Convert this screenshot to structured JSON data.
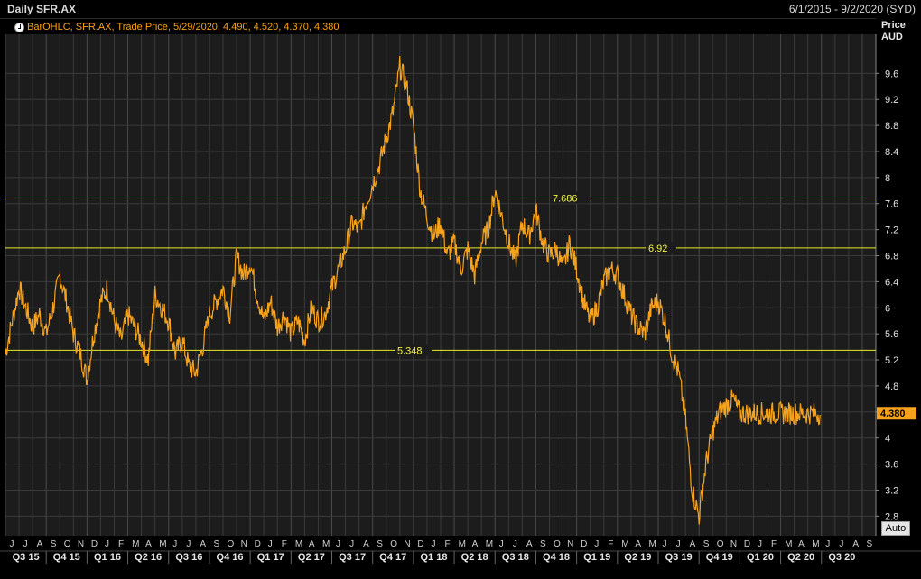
{
  "header": {
    "title": "Daily SFR.AX",
    "date_range": "6/1/2015 - 9/2/2020 (SYD)"
  },
  "legend": {
    "text": "BarOHLC, SFR.AX, Trade Price, 5/29/2020, 4.490, 4.520, 4.370, 4.380",
    "icon": "check-circle-icon"
  },
  "axis": {
    "title_line1": "Price",
    "title_line2": "AUD",
    "auto_label": "Auto"
  },
  "colors": {
    "series": "#f7a21b",
    "hline": "#e8e82a",
    "background": "#1c1c1c",
    "grid": "#3a3a3a"
  },
  "chart_data": {
    "type": "line",
    "ylabel": "Price AUD",
    "ylim": [
      2.5,
      10.2
    ],
    "y_ticks": [
      "2.8",
      "3.2",
      "3.6",
      "4",
      "4.4",
      "4.8",
      "5.2",
      "5.6",
      "6",
      "6.4",
      "6.8",
      "7.2",
      "7.6",
      "8",
      "8.4",
      "8.8",
      "9.2",
      "9.6"
    ],
    "months": [
      "J",
      "J",
      "A",
      "S",
      "O",
      "N",
      "D",
      "J",
      "F",
      "M",
      "A",
      "M",
      "J",
      "J",
      "A",
      "S",
      "O",
      "N",
      "D",
      "J",
      "F",
      "M",
      "A",
      "M",
      "J",
      "J",
      "A",
      "S",
      "O",
      "N",
      "D",
      "J",
      "F",
      "M",
      "A",
      "M",
      "J",
      "J",
      "A",
      "S",
      "O",
      "N",
      "D",
      "J",
      "F",
      "M",
      "A",
      "M",
      "J",
      "J",
      "A",
      "S",
      "O",
      "N",
      "D",
      "J",
      "F",
      "M",
      "A",
      "M",
      "J",
      "J",
      "A",
      "S"
    ],
    "quarters": [
      "Q3 15",
      "Q4 15",
      "Q1 16",
      "Q2 16",
      "Q3 16",
      "Q4 16",
      "Q1 17",
      "Q2 17",
      "Q3 17",
      "Q4 17",
      "Q1 18",
      "Q2 18",
      "Q3 18",
      "Q4 18",
      "Q1 19",
      "Q2 19",
      "Q3 19",
      "Q4 19",
      "Q1 20",
      "Q2 20",
      "Q3 20"
    ],
    "horizontal_lines": [
      {
        "value": 7.686,
        "label": "7.686"
      },
      {
        "value": 6.92,
        "label": "6.92"
      },
      {
        "value": 5.348,
        "label": "5.348"
      }
    ],
    "last_value": "4.380",
    "series": [
      {
        "x": [
          0,
          0.5,
          1,
          1.5,
          2,
          2.5,
          3,
          3.5,
          4,
          4.5,
          5,
          5.5,
          6,
          6.5,
          7,
          7.5,
          8,
          8.5,
          9,
          9.5,
          10,
          10.5,
          11,
          11.5,
          12,
          12.5,
          13,
          13.5,
          14,
          14.5,
          15,
          15.5,
          16,
          16.5,
          17,
          17.5,
          18,
          18.5,
          19,
          19.5,
          20,
          20.5,
          21,
          21.5,
          22,
          22.5,
          23,
          23.5,
          24,
          24.5,
          25,
          25.5,
          26,
          26.5,
          27,
          27.5,
          28,
          28.5,
          29,
          29.5,
          30,
          30.5,
          31,
          31.5,
          32,
          32.5,
          33,
          33.5,
          34,
          34.5,
          35,
          35.5,
          36,
          36.5,
          37,
          37.5,
          38,
          38.5,
          39,
          39.5,
          40,
          40.5,
          41,
          41.5,
          42,
          42.5,
          43,
          43.5,
          44,
          44.5,
          45,
          45.5,
          46,
          46.5,
          47,
          47.5,
          48,
          48.5,
          49,
          49.5,
          50,
          50.5,
          51,
          51.5,
          52,
          52.5,
          53,
          53.5,
          54,
          54.5,
          55,
          55.5,
          56,
          56.5,
          57,
          57.5,
          58,
          58.5,
          59,
          59.5,
          60
        ],
        "values": [
          5.3,
          5.8,
          6.3,
          6.0,
          5.7,
          5.9,
          5.6,
          6.0,
          6.5,
          6.1,
          5.6,
          5.3,
          4.9,
          5.6,
          6.1,
          6.3,
          5.8,
          5.5,
          5.9,
          5.7,
          5.5,
          5.2,
          6.2,
          6.0,
          5.8,
          5.3,
          5.5,
          5.1,
          5.0,
          5.4,
          5.9,
          6.1,
          6.3,
          5.9,
          6.8,
          6.5,
          6.7,
          6.2,
          5.8,
          6.1,
          5.7,
          5.9,
          5.6,
          5.8,
          5.5,
          6.0,
          5.8,
          5.9,
          6.3,
          6.6,
          6.9,
          7.3,
          7.2,
          7.6,
          7.9,
          8.2,
          8.6,
          9.0,
          9.7,
          9.4,
          8.8,
          7.8,
          7.4,
          7.1,
          7.3,
          6.8,
          7.0,
          6.6,
          6.9,
          6.5,
          7.0,
          7.2,
          7.8,
          7.4,
          7.0,
          6.7,
          7.3,
          7.1,
          7.5,
          7.0,
          6.8,
          6.9,
          6.6,
          7.0,
          6.6,
          6.1,
          5.8,
          6.0,
          6.4,
          6.6,
          6.5,
          6.2,
          5.9,
          5.7,
          5.6,
          6.0,
          6.1,
          5.8,
          5.3,
          5.0,
          4.3,
          3.2,
          2.8,
          3.6,
          4.1,
          4.4,
          4.5,
          4.6,
          4.38,
          4.38,
          4.38,
          4.38,
          4.38,
          4.38,
          4.38,
          4.38,
          4.38,
          4.38,
          4.38,
          4.38,
          4.38
        ]
      }
    ]
  }
}
